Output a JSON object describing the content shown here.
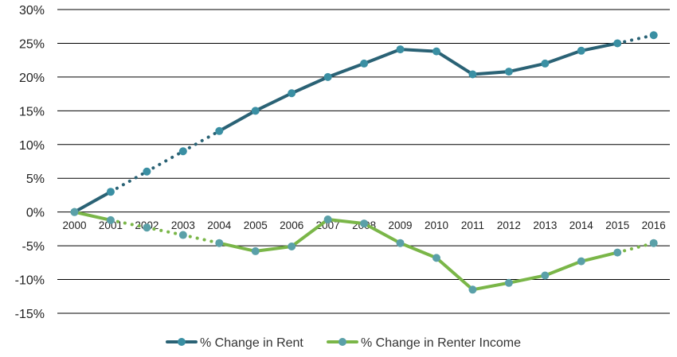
{
  "chart_data": {
    "type": "line",
    "title": "",
    "xlabel": "",
    "ylabel": "",
    "ylim": [
      -15,
      30
    ],
    "yticks": [
      30,
      25,
      20,
      15,
      10,
      5,
      0,
      -5,
      -10,
      -15
    ],
    "ytick_labels": [
      "30%",
      "25%",
      "20%",
      "15%",
      "10%",
      "5%",
      "0%",
      "-5%",
      "-10%",
      "-15%"
    ],
    "x": [
      "2000",
      "2001",
      "2002",
      "2003",
      "2004",
      "2005",
      "2006",
      "2007",
      "2008",
      "2009",
      "2010",
      "2011",
      "2012",
      "2013",
      "2014",
      "2015",
      "2016"
    ],
    "grid": true,
    "legend_position": "bottom",
    "series": [
      {
        "name": "% Change in Rent",
        "color": "#2a6275",
        "marker_color": "#3a8fa3",
        "values": [
          0,
          3.0,
          6.0,
          9.0,
          12.0,
          15.0,
          17.6,
          20.0,
          22.0,
          24.1,
          23.8,
          20.4,
          20.8,
          22.0,
          23.9,
          25.0,
          26.2
        ],
        "segment_style": [
          "solid",
          "dotted",
          "dotted",
          "dotted",
          "solid",
          "solid",
          "solid",
          "solid",
          "solid",
          "solid",
          "solid",
          "solid",
          "solid",
          "solid",
          "solid",
          "dotted"
        ]
      },
      {
        "name": "% Change in Renter Income",
        "color": "#7ab648",
        "marker_color": "#5aa0a8",
        "values": [
          0,
          -1.2,
          -2.3,
          -3.4,
          -4.6,
          -5.8,
          -5.1,
          -1.1,
          -1.7,
          -4.6,
          -6.8,
          -11.5,
          -10.5,
          -9.4,
          -7.3,
          -6.0,
          -4.6
        ],
        "segment_style": [
          "solid",
          "dotted",
          "dotted",
          "dotted",
          "solid",
          "solid",
          "solid",
          "solid",
          "solid",
          "solid",
          "solid",
          "solid",
          "solid",
          "solid",
          "solid",
          "dotted"
        ]
      }
    ]
  }
}
